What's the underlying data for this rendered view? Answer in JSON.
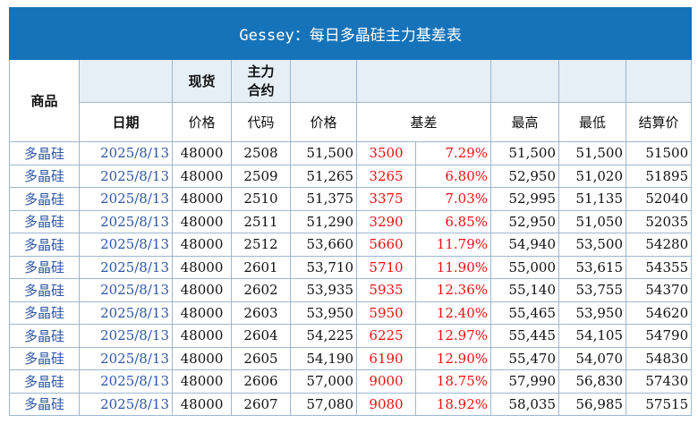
{
  "title": "Gessey：每日多晶硅主力基差表",
  "header": {
    "product": "商品",
    "spot": "现货",
    "main_contract": [
      "主力",
      "合约"
    ],
    "date": "日期",
    "price": "价格",
    "code": "代码",
    "futures_price": "价格",
    "basis": "基差",
    "high": "最高",
    "low": "最低",
    "settle": "结算价"
  },
  "rows": [
    {
      "product": "多晶硅",
      "date": "2025/8/13",
      "spot": "48000",
      "code": "2508",
      "price": "51,500",
      "basis": "3500",
      "basis_pct": "7.29%",
      "high": "51,500",
      "low": "51,500",
      "settle": "51500"
    },
    {
      "product": "多晶硅",
      "date": "2025/8/13",
      "spot": "48000",
      "code": "2509",
      "price": "51,265",
      "basis": "3265",
      "basis_pct": "6.80%",
      "high": "52,950",
      "low": "51,020",
      "settle": "51895"
    },
    {
      "product": "多晶硅",
      "date": "2025/8/13",
      "spot": "48000",
      "code": "2510",
      "price": "51,375",
      "basis": "3375",
      "basis_pct": "7.03%",
      "high": "52,995",
      "low": "51,135",
      "settle": "52040"
    },
    {
      "product": "多晶硅",
      "date": "2025/8/13",
      "spot": "48000",
      "code": "2511",
      "price": "51,290",
      "basis": "3290",
      "basis_pct": "6.85%",
      "high": "52,950",
      "low": "51,050",
      "settle": "52035"
    },
    {
      "product": "多晶硅",
      "date": "2025/8/13",
      "spot": "48000",
      "code": "2512",
      "price": "53,660",
      "basis": "5660",
      "basis_pct": "11.79%",
      "high": "54,940",
      "low": "53,500",
      "settle": "54280"
    },
    {
      "product": "多晶硅",
      "date": "2025/8/13",
      "spot": "48000",
      "code": "2601",
      "price": "53,710",
      "basis": "5710",
      "basis_pct": "11.90%",
      "high": "55,000",
      "low": "53,615",
      "settle": "54355"
    },
    {
      "product": "多晶硅",
      "date": "2025/8/13",
      "spot": "48000",
      "code": "2602",
      "price": "53,935",
      "basis": "5935",
      "basis_pct": "12.36%",
      "high": "55,140",
      "low": "53,755",
      "settle": "54370"
    },
    {
      "product": "多晶硅",
      "date": "2025/8/13",
      "spot": "48000",
      "code": "2603",
      "price": "53,950",
      "basis": "5950",
      "basis_pct": "12.40%",
      "high": "55,465",
      "low": "53,950",
      "settle": "54620"
    },
    {
      "product": "多晶硅",
      "date": "2025/8/13",
      "spot": "48000",
      "code": "2604",
      "price": "54,225",
      "basis": "6225",
      "basis_pct": "12.97%",
      "high": "55,445",
      "low": "54,105",
      "settle": "54790"
    },
    {
      "product": "多晶硅",
      "date": "2025/8/13",
      "spot": "48000",
      "code": "2605",
      "price": "54,190",
      "basis": "6190",
      "basis_pct": "12.90%",
      "high": "55,470",
      "low": "54,070",
      "settle": "54830"
    },
    {
      "product": "多晶硅",
      "date": "2025/8/13",
      "spot": "48000",
      "code": "2606",
      "price": "57,000",
      "basis": "9000",
      "basis_pct": "18.75%",
      "high": "57,990",
      "low": "56,830",
      "settle": "57430"
    },
    {
      "product": "多晶硅",
      "date": "2025/8/13",
      "spot": "48000",
      "code": "2607",
      "price": "57,080",
      "basis": "9080",
      "basis_pct": "18.92%",
      "high": "58,035",
      "low": "56,985",
      "settle": "57515"
    }
  ],
  "colors": {
    "title_bg": "#1773b9",
    "header_shade": "#e6eef6",
    "grid": "#9db7d2",
    "product_text": "#2e57a6",
    "basis_text": "#ee1111"
  }
}
